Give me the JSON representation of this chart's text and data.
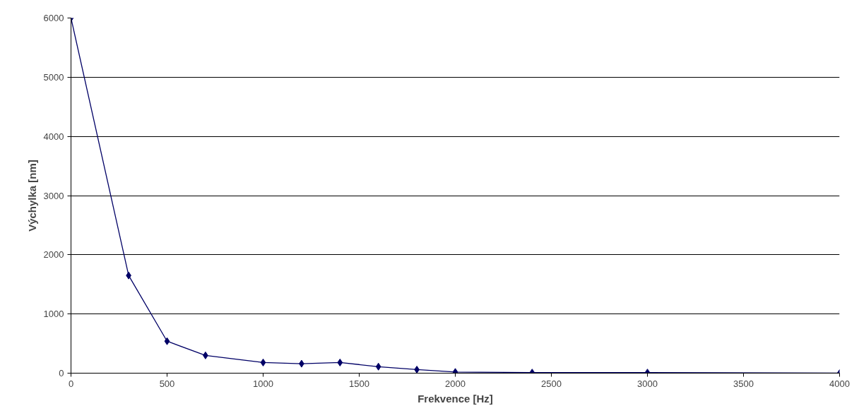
{
  "chart_data": {
    "type": "line",
    "xlabel": "Frekvence [Hz]",
    "ylabel": "Výchylka [nm]",
    "x": [
      0,
      300,
      500,
      700,
      1000,
      1200,
      1400,
      1600,
      1800,
      2000,
      2400,
      3000,
      4000
    ],
    "series": [
      {
        "color": "#000066",
        "values": [
          6000,
          1650,
          540,
          300,
          180,
          160,
          180,
          110,
          60,
          20,
          10,
          10,
          0
        ]
      }
    ],
    "xlim": [
      0,
      4000
    ],
    "xticks": [
      0,
      500,
      1000,
      1500,
      2000,
      2500,
      3000,
      3500,
      4000
    ],
    "ylim": [
      0,
      6000
    ],
    "yticks": [
      0,
      1000,
      2000,
      3000,
      4000,
      5000,
      6000
    ],
    "grid": "y",
    "marker": "diamond",
    "line_style": "solid"
  }
}
